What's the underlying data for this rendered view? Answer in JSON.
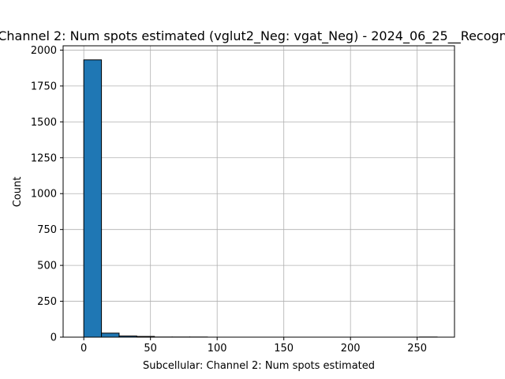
{
  "chart_data": {
    "type": "bar",
    "title": "Channel 2: Num spots estimated (vglut2_Neg: vgat_Neg) - 2024_06_25__Recogn",
    "xlabel": "Subcellular: Channel 2: Num spots estimated",
    "ylabel": "Count",
    "xlim": [
      -15.5,
      278
    ],
    "ylim": [
      0,
      2030
    ],
    "xticks": [
      0,
      50,
      100,
      150,
      200,
      250
    ],
    "yticks": [
      0,
      250,
      500,
      750,
      1000,
      1250,
      1500,
      1750,
      2000
    ],
    "grid": true,
    "bins": [
      {
        "x0": 0,
        "x1": 13.25,
        "count": 1932
      },
      {
        "x0": 13.25,
        "x1": 26.5,
        "count": 28
      },
      {
        "x0": 26.5,
        "x1": 39.75,
        "count": 8
      },
      {
        "x0": 39.75,
        "x1": 53,
        "count": 5
      },
      {
        "x0": 53,
        "x1": 66.25,
        "count": 1
      },
      {
        "x0": 66.25,
        "x1": 79.5,
        "count": 1
      },
      {
        "x0": 79.5,
        "x1": 92.75,
        "count": 1
      },
      {
        "x0": 92.75,
        "x1": 106,
        "count": 0
      },
      {
        "x0": 106,
        "x1": 119.25,
        "count": 0
      },
      {
        "x0": 119.25,
        "x1": 132.5,
        "count": 0
      },
      {
        "x0": 132.5,
        "x1": 145.75,
        "count": 0
      },
      {
        "x0": 145.75,
        "x1": 159,
        "count": 0
      },
      {
        "x0": 159,
        "x1": 172.25,
        "count": 0
      },
      {
        "x0": 172.25,
        "x1": 185.5,
        "count": 0
      },
      {
        "x0": 185.5,
        "x1": 198.75,
        "count": 0
      },
      {
        "x0": 198.75,
        "x1": 212,
        "count": 0
      },
      {
        "x0": 212,
        "x1": 225.25,
        "count": 0
      },
      {
        "x0": 225.25,
        "x1": 238.5,
        "count": 0
      },
      {
        "x0": 238.5,
        "x1": 251.75,
        "count": 0
      },
      {
        "x0": 251.75,
        "x1": 265,
        "count": 1
      }
    ],
    "bar_color": "#1f77b4",
    "edge_color": "#000000",
    "grid_color": "#b0b0b0"
  }
}
